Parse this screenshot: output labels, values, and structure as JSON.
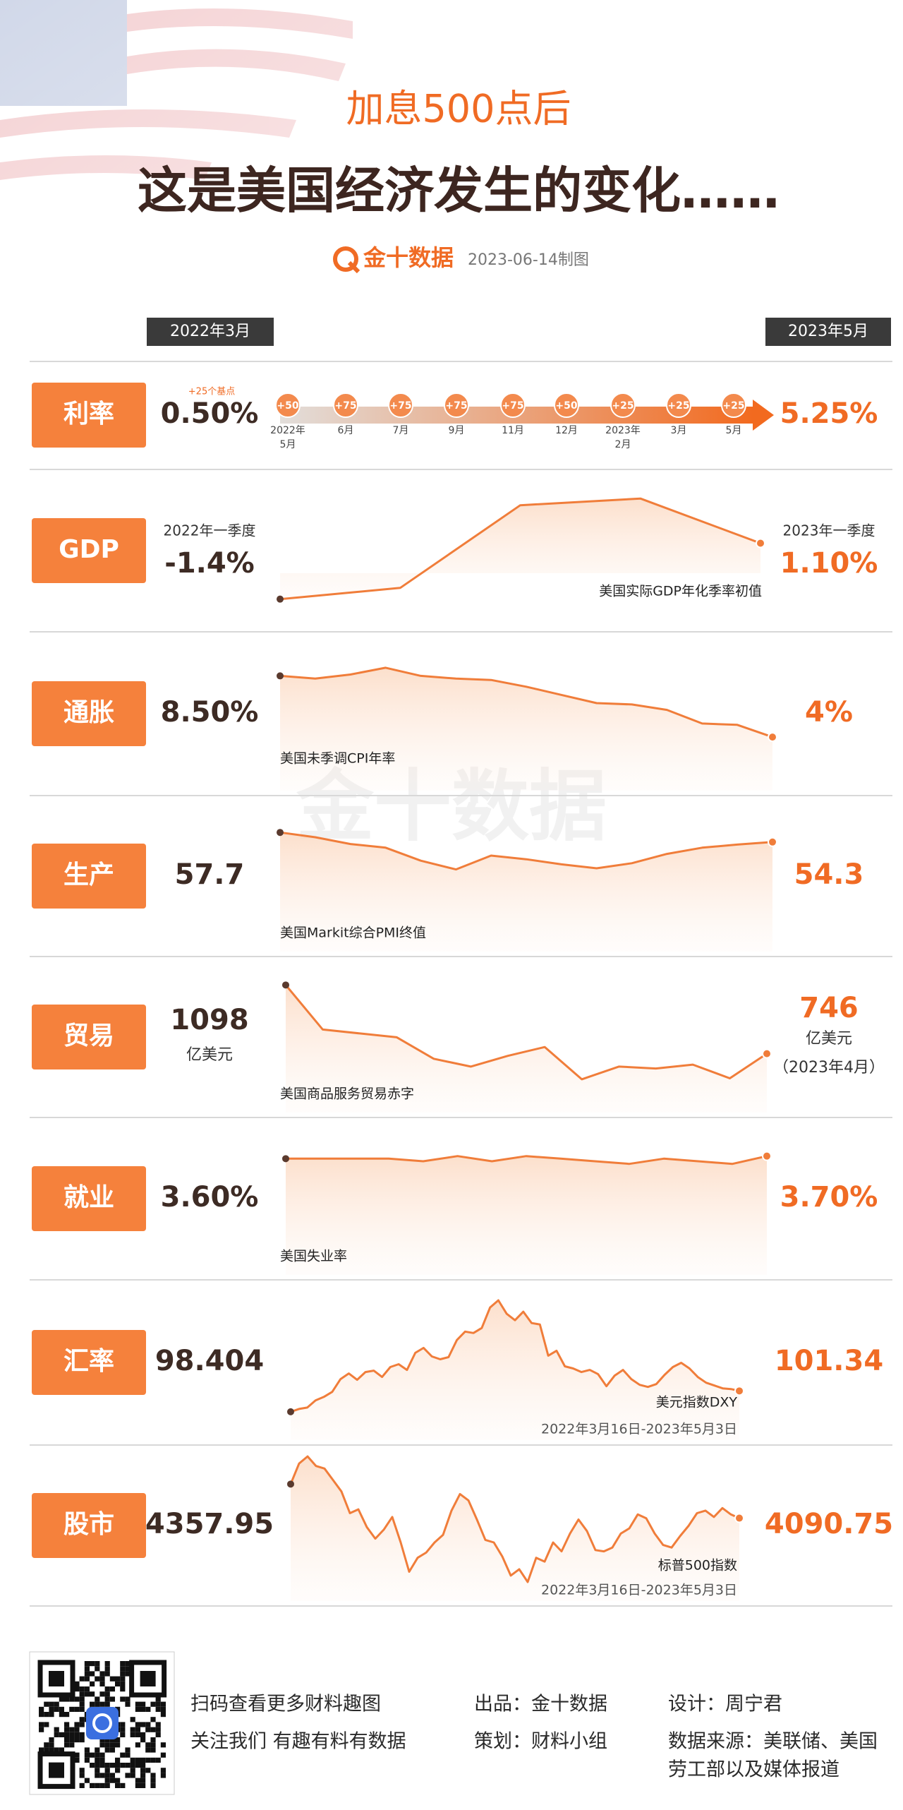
{
  "header": {
    "subtitle": "加息500点后",
    "title": "这是美国经济发生的变化……",
    "brand": "金十数据",
    "date": "2023-06-14制图",
    "watermark": "金十数据"
  },
  "period": {
    "start": "2022年3月",
    "end": "2023年5月"
  },
  "rate": {
    "label": "利率",
    "start": "0.50%",
    "note": "+25个基点",
    "end": "5.25%",
    "hikes": [
      "+50",
      "+75",
      "+75",
      "+75",
      "+75",
      "+50",
      "+25",
      "+25",
      "+25"
    ],
    "dates": [
      [
        "2022年",
        "5月"
      ],
      [
        "6月"
      ],
      [
        "7月"
      ],
      [
        "9月"
      ],
      [
        "11月"
      ],
      [
        "12月"
      ],
      [
        "2023年",
        "2月"
      ],
      [
        "3月"
      ],
      [
        "5月"
      ]
    ]
  },
  "chart_data": [
    {
      "type": "line",
      "label": "GDP",
      "start_note": "2022年一季度",
      "start": "-1.4%",
      "end_note": "2023年一季度",
      "end": "1.10%",
      "caption": "美国实际GDP年化季率初值",
      "values": [
        -1.4,
        -0.9,
        2.8,
        3.1,
        1.1
      ],
      "ylim": [
        -1.6,
        3.2
      ],
      "color": "#f07d3a"
    },
    {
      "type": "line",
      "label": "通胀",
      "start": "8.50%",
      "end": "4%",
      "caption": "美国未季调CPI年率",
      "values": [
        8.5,
        8.3,
        8.6,
        9.1,
        8.5,
        8.3,
        8.2,
        7.7,
        7.1,
        6.5,
        6.4,
        6.0,
        5.0,
        4.9,
        4.0
      ],
      "ylim": [
        3.8,
        9.3
      ],
      "color": "#f07d3a"
    },
    {
      "type": "line",
      "label": "生产",
      "start": "57.7",
      "end": "54.3",
      "caption": "美国Markit综合PMI终值",
      "values": [
        57.7,
        56.0,
        53.6,
        52.3,
        47.7,
        44.6,
        49.5,
        48.2,
        46.4,
        45.0,
        46.8,
        50.1,
        52.3,
        53.4,
        54.3
      ],
      "ylim": [
        20,
        60
      ],
      "color": "#f07d3a"
    },
    {
      "type": "line",
      "label": "贸易",
      "start": "1098",
      "start_unit": "亿美元",
      "end": "746",
      "end_unit": "亿美元",
      "end_note": "（2023年4月）",
      "caption": "美国商品服务贸易赤字",
      "values": [
        1098,
        870,
        850,
        830,
        720,
        680,
        735,
        780,
        615,
        680,
        670,
        690,
        620,
        746
      ],
      "ylim": [
        600,
        1110
      ],
      "color": "#f07d3a"
    },
    {
      "type": "line",
      "label": "就业",
      "start": "3.60%",
      "end": "3.70%",
      "caption": "美国失业率",
      "values": [
        3.6,
        3.6,
        3.6,
        3.6,
        3.5,
        3.7,
        3.5,
        3.7,
        3.6,
        3.5,
        3.4,
        3.6,
        3.5,
        3.4,
        3.7
      ],
      "ylim": [
        2,
        5
      ],
      "color": "#f07d3a"
    },
    {
      "type": "line",
      "label": "汇率",
      "start": "98.404",
      "end": "101.34",
      "caption": "美元指数DXY",
      "date_range": "2022年3月16日-2023年5月3日",
      "values": [
        98.4,
        98.8,
        99.0,
        100.0,
        100.5,
        101.2,
        103.0,
        103.8,
        102.9,
        104.0,
        104.2,
        103.3,
        104.7,
        105.1,
        104.3,
        106.7,
        107.4,
        106.2,
        105.8,
        106.1,
        108.5,
        109.7,
        109.5,
        110.2,
        113.1,
        114.1,
        112.2,
        111.3,
        112.5,
        110.9,
        110.7,
        106.3,
        107.0,
        104.8,
        104.5,
        104.0,
        104.3,
        103.7,
        102.0,
        103.5,
        104.3,
        103.0,
        102.2,
        101.9,
        102.3,
        103.6,
        104.7,
        105.3,
        104.5,
        103.3,
        102.5,
        102.1,
        101.7,
        101.6,
        101.34
      ],
      "ylim": [
        96.4,
        114.3
      ],
      "color": "#f07d3a"
    },
    {
      "type": "line",
      "label": "股市",
      "start": "4357.95",
      "end": "4090.75",
      "caption": "标普500指数",
      "date_range": "2022年3月16日-2023年5月3日",
      "values": [
        4357.95,
        4520,
        4575,
        4500,
        4480,
        4390,
        4300,
        4130,
        4160,
        4020,
        3930,
        4000,
        4100,
        3900,
        3670,
        3780,
        3820,
        3900,
        3960,
        4150,
        4280,
        4230,
        4080,
        3920,
        3900,
        3790,
        3640,
        3690,
        3590,
        3780,
        3750,
        3900,
        3830,
        3970,
        4080,
        3990,
        3840,
        3830,
        3860,
        3970,
        4010,
        4120,
        4090,
        3970,
        3880,
        3860,
        3950,
        4030,
        4130,
        4150,
        4100,
        4170,
        4120,
        4090.75
      ],
      "ylim": [
        3540,
        4620
      ],
      "color": "#f07d3a"
    }
  ],
  "footer": {
    "qr_lines": [
      "扫码查看更多财料趣图",
      "关注我们 有趣有料有数据"
    ],
    "credits": [
      "出品：金十数据",
      "策划：财料小组"
    ],
    "design": "设计：周宁君",
    "source": [
      "数据来源：美联储、美国",
      "劳工部以及媒体报道"
    ]
  }
}
